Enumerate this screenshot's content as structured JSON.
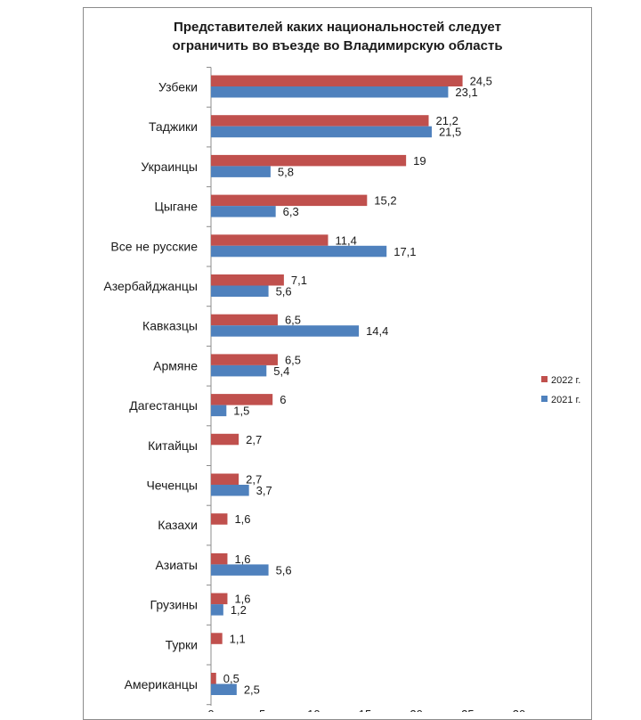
{
  "chart_data": {
    "type": "bar",
    "orientation": "horizontal",
    "title_lines": [
      "Представителей каких национальностей следует",
      "ограничить во въезде во Владимирскую область"
    ],
    "categories": [
      "Узбеки",
      "Таджики",
      "Украинцы",
      "Цыгане",
      "Все не русские",
      "Азербайджанцы",
      "Кавказцы",
      "Армяне",
      "Дагестанцы",
      "Китайцы",
      "Чеченцы",
      "Казахи",
      "Азиаты",
      "Грузины",
      "Турки",
      "Американцы"
    ],
    "series": [
      {
        "name": "2022 г.",
        "color": "#c0504d",
        "values": [
          "24,5",
          "21,2",
          "19",
          "15,2",
          "11,4",
          "7,1",
          "6,5",
          "6,5",
          "6",
          "2,7",
          "2,7",
          "1,6",
          "1,6",
          "1,6",
          "1,1",
          "0,5"
        ]
      },
      {
        "name": "2021 г.",
        "color": "#4f81bd",
        "values": [
          "23,1",
          "21,5",
          "5,8",
          "6,3",
          "17,1",
          "5,6",
          "14,4",
          "5,4",
          "1,5",
          null,
          "3,7",
          null,
          "5,6",
          "1,2",
          null,
          "2,5"
        ]
      }
    ],
    "x_ticks": [
      "0",
      "5",
      "10",
      "15",
      "20",
      "25",
      "30"
    ],
    "xlim": [
      0,
      30
    ],
    "legend_position": "right",
    "grid": false
  }
}
